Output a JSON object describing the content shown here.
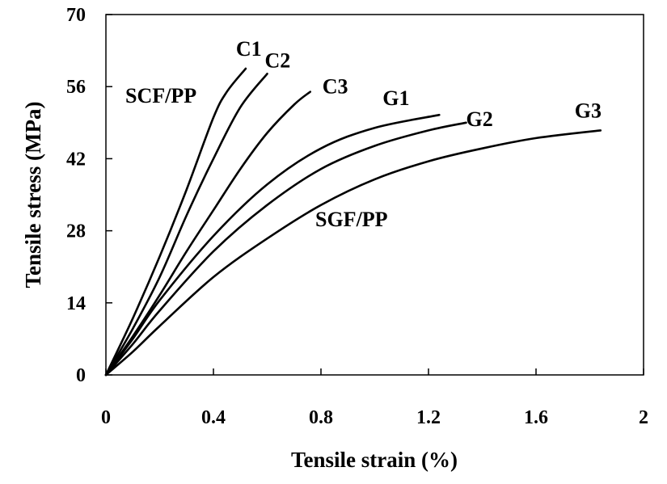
{
  "chart_data": {
    "type": "line",
    "title": "",
    "xlabel": "Tensile strain (%)",
    "ylabel": "Tensile stress (MPa)",
    "xlim": [
      0,
      2
    ],
    "ylim": [
      0,
      70
    ],
    "x_ticks": [
      "0",
      "0.4",
      "0.8",
      "1.2",
      "1.6",
      "2"
    ],
    "y_ticks": [
      "0",
      "14",
      "28",
      "42",
      "56",
      "70"
    ],
    "x_tick_values": [
      0,
      0.4,
      0.8,
      1.2,
      1.6,
      2
    ],
    "y_tick_values": [
      0,
      14,
      28,
      42,
      56,
      70
    ],
    "grid": false,
    "legend": "none",
    "series": [
      {
        "name": "C1",
        "x": [
          0,
          0.1,
          0.2,
          0.3,
          0.4,
          0.45,
          0.52
        ],
        "y": [
          0,
          11,
          23,
          36,
          50,
          55,
          59.5
        ]
      },
      {
        "name": "C2",
        "x": [
          0,
          0.1,
          0.2,
          0.3,
          0.4,
          0.5,
          0.6
        ],
        "y": [
          0,
          9,
          19,
          31,
          42,
          52,
          58.5
        ]
      },
      {
        "name": "C3",
        "x": [
          0,
          0.1,
          0.2,
          0.3,
          0.4,
          0.5,
          0.6,
          0.7,
          0.76
        ],
        "y": [
          0,
          7.5,
          15.5,
          24,
          32,
          40,
          47,
          52.5,
          55
        ]
      },
      {
        "name": "G1",
        "x": [
          0,
          0.1,
          0.2,
          0.4,
          0.6,
          0.8,
          1.0,
          1.24
        ],
        "y": [
          0,
          7,
          14.5,
          27,
          37,
          44,
          48,
          50.5
        ]
      },
      {
        "name": "G2",
        "x": [
          0,
          0.1,
          0.2,
          0.4,
          0.6,
          0.8,
          1.0,
          1.2,
          1.34
        ],
        "y": [
          0,
          6,
          12.5,
          24,
          33,
          40,
          44.5,
          47.5,
          49
        ]
      },
      {
        "name": "G3",
        "x": [
          0,
          0.1,
          0.2,
          0.4,
          0.6,
          0.8,
          1.0,
          1.2,
          1.4,
          1.6,
          1.84
        ],
        "y": [
          0,
          4.5,
          9.5,
          19,
          26.5,
          33,
          38,
          41.5,
          44,
          46,
          47.5
        ]
      }
    ],
    "annotations": {
      "scf_group": "SCF/PP",
      "sgf_group": "SGF/PP"
    }
  }
}
